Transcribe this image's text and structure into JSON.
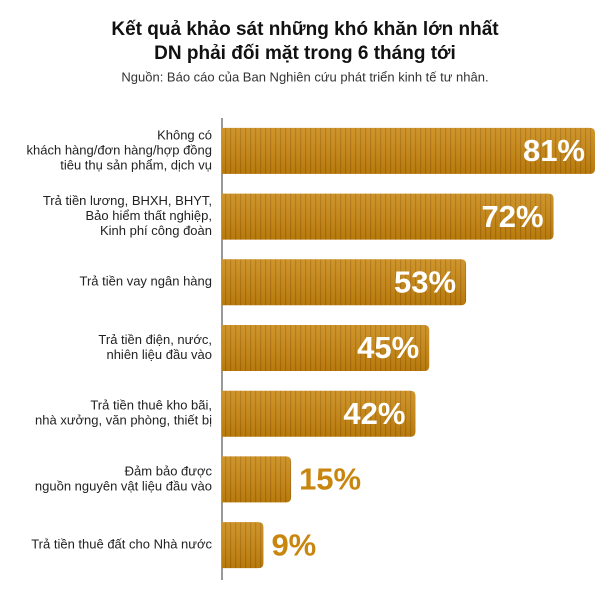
{
  "chart_data": {
    "type": "bar",
    "orientation": "horizontal",
    "title": [
      "Kết quả khảo sát những khó khăn lớn nhất",
      "DN phải đối mặt trong 6 tháng tới"
    ],
    "subtitle": "Nguồn: Báo cáo của Ban Nghiên cứu phát triển kinh tế tư nhân.",
    "categories": [
      [
        "Không có",
        "khách hàng/đơn hàng/hợp đồng",
        "tiêu thụ sản phẩm, dịch vụ"
      ],
      [
        "Trả tiền lương, BHXH, BHYT,",
        "Bảo hiểm thất nghiệp,",
        "Kinh phí công đoàn"
      ],
      [
        "Trả tiền vay ngân hàng"
      ],
      [
        "Trả tiền điện, nước,",
        "nhiên liệu đầu vào"
      ],
      [
        "Trả tiền thuê kho bãi,",
        "nhà xưởng, văn phòng, thiết bị"
      ],
      [
        "Đảm bảo được",
        "nguồn nguyên vật liệu đầu vào"
      ],
      [
        "Trả tiền thuê đất cho Nhà nước"
      ]
    ],
    "values": [
      81,
      72,
      53,
      45,
      42,
      15,
      9
    ],
    "value_labels": [
      "81%",
      "72%",
      "53%",
      "45%",
      "42%",
      "15%",
      "9%"
    ],
    "color": "#c8860e"
  }
}
